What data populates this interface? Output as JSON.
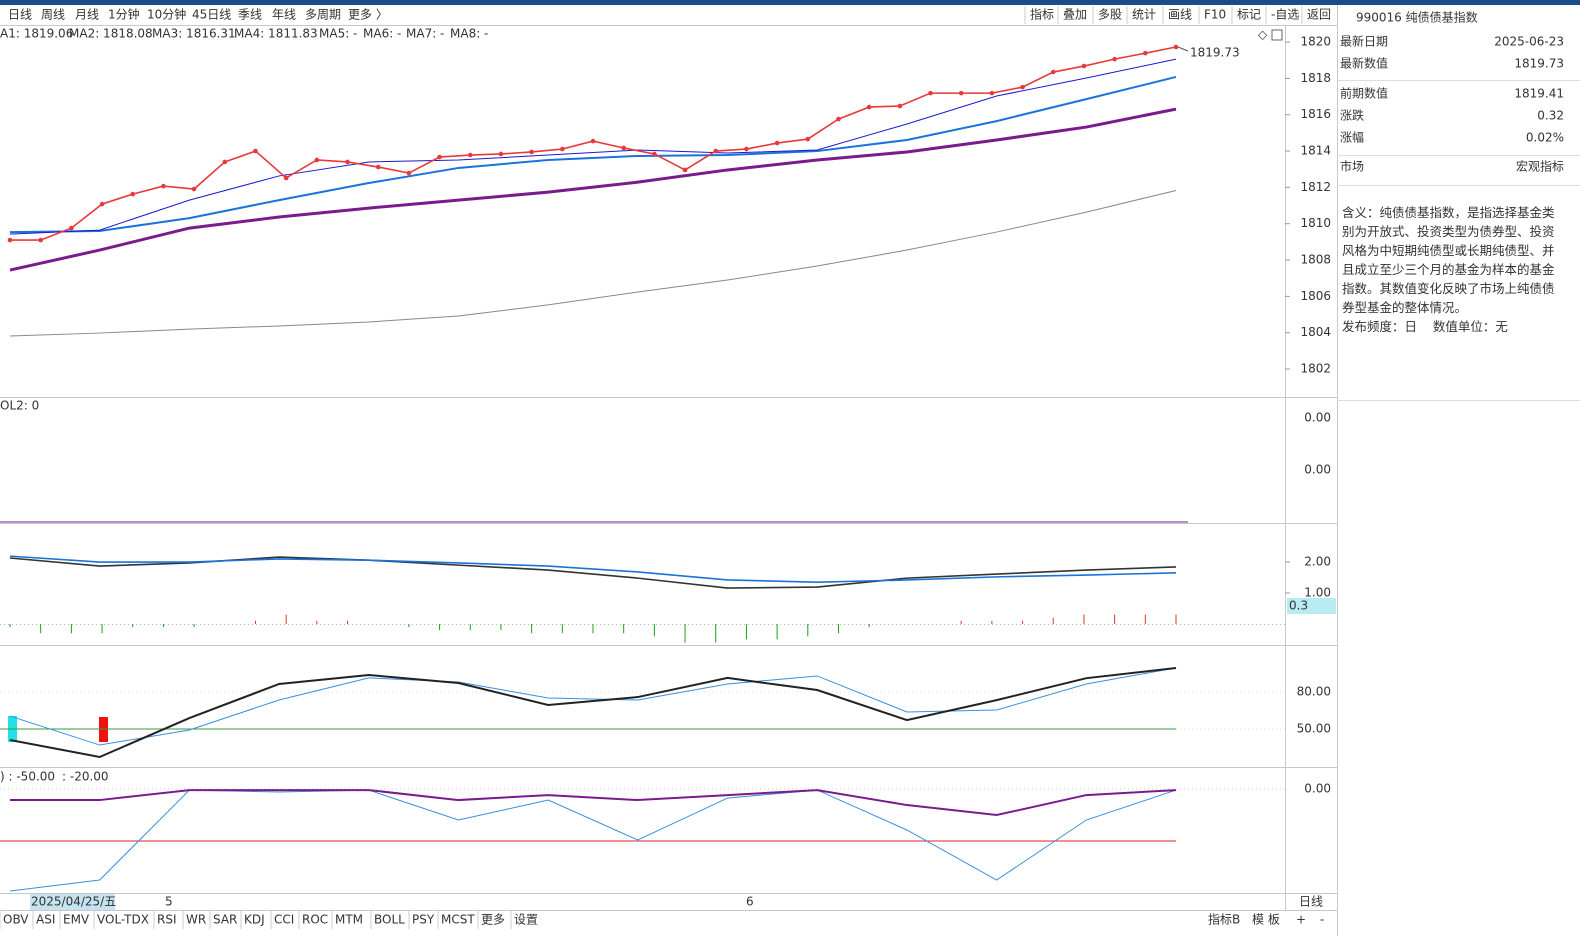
{
  "toolbar": {
    "periods": [
      "日线",
      "周线",
      "月线",
      "1分钟",
      "10分钟",
      "45日线",
      "季线",
      "年线",
      "多周期",
      "更多 〉"
    ],
    "tools": [
      "指标",
      "叠加",
      "多股",
      "统计",
      "画线",
      "F10",
      "标记",
      "-自选",
      "返回"
    ]
  },
  "main": {
    "legend": [
      {
        "text": "A1: 1819.06",
        "color": "#1a1ad0"
      },
      {
        "text": "MA2: 1818.08",
        "color": "#1a73d9"
      },
      {
        "text": "MA3: 1816.31",
        "color": "#7a1b8c"
      },
      {
        "text": "MA4: 1811.83",
        "color": "#888888"
      },
      {
        "text": "MA5: -",
        "color": "#1a9a1a"
      },
      {
        "text": "MA6: -",
        "color": "#22c8e0"
      },
      {
        "text": "MA7: -",
        "color": "#333333"
      },
      {
        "text": "MA8: -",
        "color": "#1a73d9"
      }
    ],
    "ylim": [
      1800.46,
      1820.94
    ],
    "yticks": [
      1820,
      1818,
      1816,
      1814,
      1812,
      1810,
      1808,
      1806,
      1804,
      1802
    ],
    "close": {
      "color": "#e8393a",
      "values": [
        1809.1,
        1809.1,
        1809.76,
        1811.08,
        1811.63,
        1812.07,
        1811.91,
        1813.4,
        1814.0,
        1812.52,
        1813.51,
        1813.4,
        1813.12,
        1812.79,
        1813.67,
        1813.78,
        1813.84,
        1813.95,
        1814.11,
        1814.55,
        1814.17,
        1813.84,
        1812.96,
        1814.0,
        1814.11,
        1814.44,
        1814.66,
        1815.76,
        1816.42,
        1816.48,
        1817.19,
        1817.19,
        1817.19,
        1817.52,
        1818.35,
        1818.68,
        1819.06,
        1819.39,
        1819.73
      ]
    },
    "ma": [
      {
        "color": "#1a1ad0",
        "width": 1,
        "values": [
          1809.43,
          1809.65,
          1811.3,
          1812.63,
          1813.4,
          1813.51,
          1813.78,
          1814.06,
          1813.89,
          1814.06,
          1815.49,
          1817.03,
          1818.02,
          1819.06
        ]
      },
      {
        "color": "#1a73d9",
        "width": 2,
        "values": [
          1809.54,
          1809.6,
          1810.31,
          1811.3,
          1812.24,
          1813.07,
          1813.51,
          1813.73,
          1813.78,
          1814.0,
          1814.61,
          1815.65,
          1816.86,
          1818.08
        ]
      },
      {
        "color": "#7a1b8c",
        "width": 3,
        "values": [
          1807.45,
          1808.55,
          1809.76,
          1810.37,
          1810.86,
          1811.3,
          1811.74,
          1812.29,
          1812.96,
          1813.51,
          1813.95,
          1814.61,
          1815.32,
          1816.31
        ]
      },
      {
        "color": "#888888",
        "width": 1,
        "values": [
          1803.82,
          1803.98,
          1804.2,
          1804.37,
          1804.59,
          1804.92,
          1805.53,
          1806.24,
          1806.9,
          1807.67,
          1808.55,
          1809.54,
          1810.64,
          1811.83
        ]
      }
    ]
  },
  "vol": {
    "legend": "OL2: 0",
    "tick_labels": [
      "0.00",
      "0.00"
    ]
  },
  "macd": {
    "ylim": [
      -0.68,
      3.26
    ],
    "yticks": [
      {
        "value": 2,
        "label": "2.00"
      },
      {
        "value": 1,
        "label": "1.00"
      }
    ],
    "lines": [
      {
        "color": "#333333",
        "values": [
          2.13,
          1.87,
          1.97,
          2.16,
          2.06,
          1.9,
          1.74,
          1.48,
          1.16,
          1.19,
          1.48,
          1.61,
          1.74,
          1.84
        ]
      },
      {
        "color": "#1a73d9",
        "values": [
          2.19,
          2.0,
          2.0,
          2.1,
          2.06,
          1.97,
          1.87,
          1.68,
          1.42,
          1.35,
          1.42,
          1.52,
          1.58,
          1.65
        ]
      }
    ],
    "bars": [
      -0.1,
      -0.3,
      -0.3,
      -0.3,
      -0.1,
      -0.1,
      -0.1,
      0,
      0.1,
      0.3,
      0.1,
      0.1,
      0,
      -0.1,
      -0.2,
      -0.2,
      -0.2,
      -0.3,
      -0.3,
      -0.3,
      -0.3,
      -0.4,
      -0.6,
      -0.6,
      -0.5,
      -0.5,
      -0.4,
      -0.3,
      -0.1,
      0,
      0,
      0.1,
      0.1,
      0.1,
      0.2,
      0.3,
      0.3,
      0.3,
      0.3
    ],
    "last_label": "0.3"
  },
  "kdj": {
    "ylim": [
      19.2,
      118.1
    ],
    "yticks": [
      {
        "value": 80,
        "label": "80.00"
      },
      {
        "value": 50,
        "label": "50.00"
      }
    ],
    "level": 50,
    "lines": [
      {
        "color": "#222222",
        "values": [
          41.1,
          27.3,
          58.9,
          86.5,
          93.8,
          87.3,
          69.5,
          75.9,
          91.4,
          81.6,
          57.2,
          73.4,
          91.2,
          99.5
        ]
      },
      {
        "color": "#3a8fd9",
        "values": [
          60.5,
          37.0,
          49.2,
          73.5,
          91.4,
          88.1,
          75.1,
          73.5,
          86.5,
          93.0,
          63.8,
          65.4,
          86.5,
          99.5
        ]
      }
    ]
  },
  "wr": {
    "legend": [
      {
        "text": ") : -50.00",
        "color": "#e02020"
      },
      {
        "text": ": -20.00",
        "color": "#999999"
      }
    ],
    "ylim": [
      -100,
      21.2
    ],
    "yticks": [
      {
        "value": 0,
        "label": "0.00"
      }
    ],
    "level": -50,
    "lines": [
      {
        "color": "#3a8fd9",
        "values": [
          -98.1,
          -87.5,
          -1.0,
          -2.9,
          -1.0,
          -29.8,
          -10.6,
          -49.0,
          -8.7,
          -1.0,
          -39.4,
          -87.5,
          -29.8,
          -1.0
        ]
      },
      {
        "color": "#7a1b8c",
        "values": [
          -10.6,
          -10.6,
          -1.0,
          -1.0,
          -1.0,
          -10.6,
          -5.8,
          -10.6,
          -5.8,
          -1.0,
          -15.4,
          -25.0,
          -5.8,
          -1.0
        ]
      }
    ]
  },
  "dates": [
    "2025/04/25/五",
    "5",
    "6"
  ],
  "axis_period": "日线",
  "tabs": [
    "OBV",
    "ASI",
    "EMV",
    "VOL-TDX",
    "RSI",
    "WR",
    "SAR",
    "KDJ",
    "CCI",
    "ROC",
    "MTM",
    "BOLL",
    "PSY",
    "MCST",
    "更多",
    "设置"
  ],
  "tabs_right": [
    "指标B",
    "模 板",
    "+",
    "-"
  ],
  "info": {
    "title": "990016 纯债债基指数",
    "rows": [
      [
        "最新日期",
        "2025-06-23"
      ],
      [
        "最新数值",
        "1819.73"
      ],
      [
        "前期数值",
        "1819.41"
      ],
      [
        "涨跌",
        "0.32"
      ],
      [
        "涨幅",
        "0.02%"
      ],
      [
        "市场",
        "宏观指标"
      ]
    ],
    "description": "含义：纯债债基指数，是指选择基金类别为开放式、投资类型为债券型、投资风格为中短期纯债型或长期纯债型、并且成立至少三个月的基金为样本的基金指数。其数值变化反映了市场上纯债债券型基金的整体情况。",
    "frequency": "发布频度：日",
    "unit": "数值单位：无"
  }
}
